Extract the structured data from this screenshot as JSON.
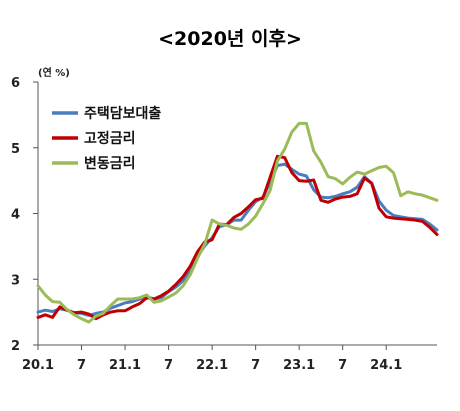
{
  "chart_data": {
    "type": "line",
    "title": "<2020년 이후>",
    "ylabel": "(연 %)",
    "xlabel": "",
    "ylim": [
      2,
      6
    ],
    "yticks": [
      2,
      3,
      4,
      5,
      6
    ],
    "x_tick_labels": [
      "20.1",
      "7",
      "21.1",
      "7",
      "22.1",
      "7",
      "23.1",
      "7",
      "24.1"
    ],
    "grid": false,
    "legend_position": "top-left",
    "x": [
      "20.1",
      "20.2",
      "20.3",
      "20.4",
      "20.5",
      "20.6",
      "20.7",
      "20.8",
      "20.9",
      "20.10",
      "20.11",
      "20.12",
      "21.1",
      "21.2",
      "21.3",
      "21.4",
      "21.5",
      "21.6",
      "21.7",
      "21.8",
      "21.9",
      "21.10",
      "21.11",
      "21.12",
      "22.1",
      "22.2",
      "22.3",
      "22.4",
      "22.5",
      "22.6",
      "22.7",
      "22.8",
      "22.9",
      "22.10",
      "22.11",
      "22.12",
      "23.1",
      "23.2",
      "23.3",
      "23.4",
      "23.5",
      "23.6",
      "23.7",
      "23.8",
      "23.9",
      "23.10",
      "23.11",
      "23.12",
      "24.1",
      "24.2",
      "24.3",
      "24.4",
      "24.5",
      "24.6",
      "24.7",
      "24.8"
    ],
    "series": [
      {
        "name": "주택담보대출",
        "color": "#4a7dbf",
        "values": [
          2.5,
          2.53,
          2.51,
          2.55,
          2.53,
          2.49,
          2.48,
          2.45,
          2.48,
          2.5,
          2.56,
          2.6,
          2.64,
          2.66,
          2.7,
          2.73,
          2.7,
          2.72,
          2.81,
          2.88,
          2.98,
          3.12,
          3.35,
          3.51,
          3.63,
          3.8,
          3.83,
          3.9,
          3.9,
          4.05,
          4.18,
          4.25,
          4.47,
          4.73,
          4.75,
          4.67,
          4.6,
          4.57,
          4.36,
          4.25,
          4.24,
          4.26,
          4.3,
          4.33,
          4.4,
          4.56,
          4.46,
          4.19,
          4.05,
          3.97,
          3.95,
          3.93,
          3.92,
          3.91,
          3.84,
          3.75
        ]
      },
      {
        "name": "고정금리",
        "color": "#c00000",
        "values": [
          2.42,
          2.46,
          2.42,
          2.58,
          2.53,
          2.49,
          2.5,
          2.47,
          2.4,
          2.46,
          2.5,
          2.52,
          2.52,
          2.58,
          2.63,
          2.72,
          2.7,
          2.75,
          2.82,
          2.92,
          3.04,
          3.2,
          3.42,
          3.57,
          3.6,
          3.84,
          3.83,
          3.94,
          4.0,
          4.1,
          4.21,
          4.23,
          4.55,
          4.87,
          4.85,
          4.62,
          4.5,
          4.49,
          4.51,
          4.2,
          4.17,
          4.22,
          4.25,
          4.26,
          4.3,
          4.54,
          4.46,
          4.08,
          3.95,
          3.93,
          3.92,
          3.91,
          3.9,
          3.88,
          3.79,
          3.68
        ]
      },
      {
        "name": "변동금리",
        "color": "#9bbb59",
        "values": [
          2.9,
          2.76,
          2.66,
          2.65,
          2.54,
          2.46,
          2.4,
          2.35,
          2.44,
          2.48,
          2.6,
          2.7,
          2.7,
          2.7,
          2.72,
          2.76,
          2.65,
          2.67,
          2.73,
          2.79,
          2.9,
          3.07,
          3.32,
          3.54,
          3.9,
          3.84,
          3.82,
          3.78,
          3.76,
          3.84,
          3.96,
          4.15,
          4.35,
          4.8,
          4.98,
          5.24,
          5.37,
          5.37,
          4.95,
          4.78,
          4.56,
          4.53,
          4.45,
          4.55,
          4.63,
          4.6,
          4.65,
          4.7,
          4.72,
          4.62,
          4.27,
          4.33,
          4.3,
          4.28,
          4.24,
          4.2
        ]
      }
    ]
  }
}
